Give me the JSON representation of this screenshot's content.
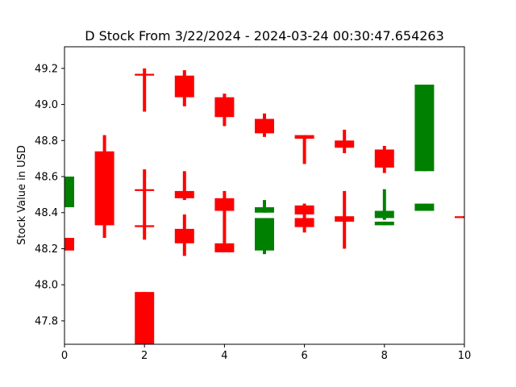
{
  "chart_data": {
    "type": "candlestick",
    "title": "D Stock From 3/22/2024 - 2024-03-24 00:30:47.654263",
    "xlabel": "",
    "ylabel": "Stock Value in USD",
    "xlim": [
      0,
      10
    ],
    "ylim": [
      47.67,
      49.32
    ],
    "xticks": [
      0,
      2,
      4,
      6,
      8,
      10
    ],
    "yticks": [
      47.8,
      48.0,
      48.2,
      48.4,
      48.6,
      48.8,
      49.0,
      49.2
    ],
    "grid": false,
    "colors": {
      "up": "#008000",
      "down": "#ff0000"
    },
    "series": [
      {
        "candles": [
          {
            "x": 0,
            "open": 48.43,
            "close": 48.6,
            "high": 48.6,
            "low": 48.43,
            "dir": "up"
          },
          {
            "x": 0,
            "open": 48.26,
            "close": 48.19,
            "high": 48.26,
            "low": 48.19,
            "dir": "down"
          },
          {
            "x": 1,
            "open": 48.74,
            "close": 48.33,
            "high": 48.83,
            "low": 48.26,
            "dir": "down"
          },
          {
            "x": 2,
            "open": 48.33,
            "close": 48.32,
            "high": 48.64,
            "low": 48.25,
            "dir": "down"
          },
          {
            "x": 2,
            "open": 48.53,
            "close": 48.52,
            "high": 48.53,
            "low": 48.52,
            "dir": "down"
          },
          {
            "x": 2,
            "open": 49.17,
            "close": 49.16,
            "high": 49.2,
            "low": 48.96,
            "dir": "down"
          },
          {
            "x": 2,
            "open": 47.96,
            "close": 47.67,
            "high": 47.96,
            "low": 47.67,
            "dir": "down"
          },
          {
            "x": 3,
            "open": 49.16,
            "close": 49.04,
            "high": 49.19,
            "low": 48.99,
            "dir": "down"
          },
          {
            "x": 3,
            "open": 48.52,
            "close": 48.48,
            "high": 48.63,
            "low": 48.47,
            "dir": "down"
          },
          {
            "x": 3,
            "open": 48.31,
            "close": 48.23,
            "high": 48.39,
            "low": 48.16,
            "dir": "down"
          },
          {
            "x": 4,
            "open": 49.04,
            "close": 48.93,
            "high": 49.06,
            "low": 48.88,
            "dir": "down"
          },
          {
            "x": 4,
            "open": 48.48,
            "close": 48.41,
            "high": 48.52,
            "low": 48.23,
            "dir": "down"
          },
          {
            "x": 4,
            "open": 48.23,
            "close": 48.18,
            "high": 48.23,
            "low": 48.18,
            "dir": "down"
          },
          {
            "x": 5,
            "open": 48.92,
            "close": 48.84,
            "high": 48.95,
            "low": 48.82,
            "dir": "down"
          },
          {
            "x": 5,
            "open": 48.4,
            "close": 48.43,
            "high": 48.47,
            "low": 48.4,
            "dir": "up"
          },
          {
            "x": 5,
            "open": 48.19,
            "close": 48.37,
            "high": 48.37,
            "low": 48.17,
            "dir": "up"
          },
          {
            "x": 6,
            "open": 48.83,
            "close": 48.81,
            "high": 48.83,
            "low": 48.67,
            "dir": "down"
          },
          {
            "x": 6,
            "open": 48.44,
            "close": 48.39,
            "high": 48.45,
            "low": 48.39,
            "dir": "down"
          },
          {
            "x": 6,
            "open": 48.37,
            "close": 48.32,
            "high": 48.39,
            "low": 48.29,
            "dir": "down"
          },
          {
            "x": 7,
            "open": 48.8,
            "close": 48.76,
            "high": 48.86,
            "low": 48.73,
            "dir": "down"
          },
          {
            "x": 7,
            "open": 48.38,
            "close": 48.35,
            "high": 48.52,
            "low": 48.2,
            "dir": "down"
          },
          {
            "x": 8,
            "open": 48.75,
            "close": 48.65,
            "high": 48.77,
            "low": 48.62,
            "dir": "down"
          },
          {
            "x": 8,
            "open": 48.37,
            "close": 48.41,
            "high": 48.53,
            "low": 48.36,
            "dir": "up"
          },
          {
            "x": 8,
            "open": 48.33,
            "close": 48.35,
            "high": 48.35,
            "low": 48.33,
            "dir": "up"
          },
          {
            "x": 9,
            "open": 48.63,
            "close": 49.11,
            "high": 49.11,
            "low": 48.63,
            "dir": "up"
          },
          {
            "x": 9,
            "open": 48.41,
            "close": 48.45,
            "high": 48.45,
            "low": 48.41,
            "dir": "up"
          },
          {
            "x": 10,
            "open": 48.38,
            "close": 48.37,
            "high": 48.38,
            "low": 48.37,
            "dir": "down"
          }
        ]
      }
    ]
  }
}
